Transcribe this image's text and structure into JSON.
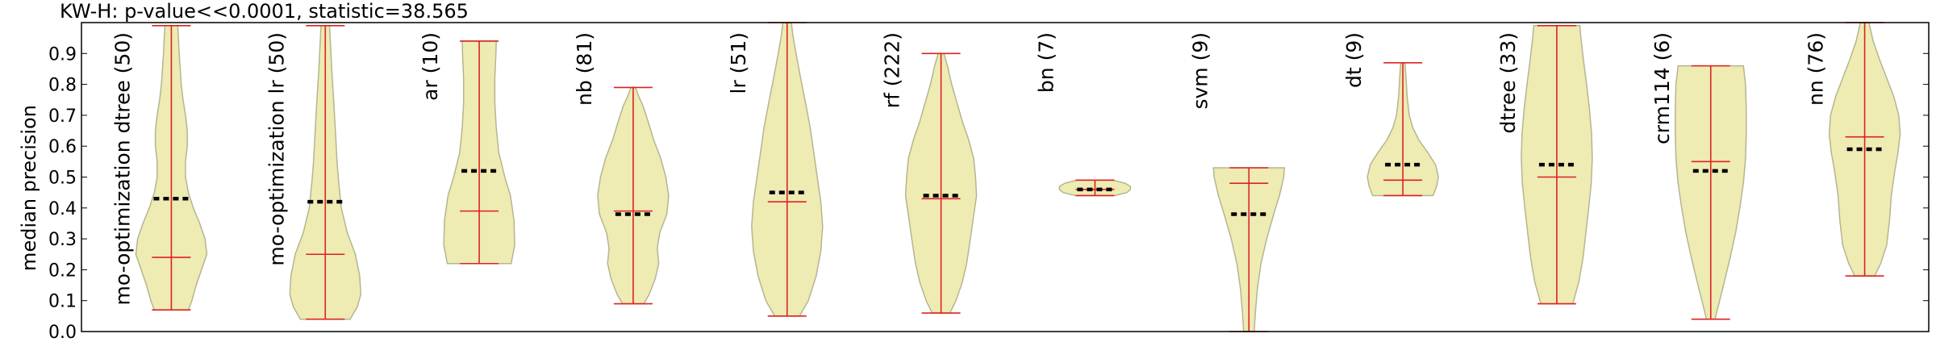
{
  "title": "KW-H: p-value<<0.0001, statistic=38.565",
  "chart_data": {
    "type": "violin",
    "title": "KW-H: p-value<<0.0001, statistic=38.565",
    "xlabel": "",
    "ylabel": "median precision",
    "ylim": [
      0.0,
      1.0
    ],
    "yticks": [
      "0.0",
      "0.1",
      "0.2",
      "0.3",
      "0.4",
      "0.5",
      "0.6",
      "0.7",
      "0.8",
      "0.9"
    ],
    "colors": {
      "fill": "#eeebb3",
      "edge": "#b5b592",
      "whisker": "#dd2222",
      "median_marker": "#000000"
    },
    "series": [
      {
        "label": "mo-optimization dtree (50)",
        "min": 0.07,
        "max": 0.99,
        "mean": 0.24,
        "median": 0.43,
        "shape": [
          [
            0.07,
            0.48
          ],
          [
            0.1,
            0.58
          ],
          [
            0.15,
            0.7
          ],
          [
            0.2,
            0.85
          ],
          [
            0.25,
            1.0
          ],
          [
            0.3,
            0.95
          ],
          [
            0.35,
            0.8
          ],
          [
            0.4,
            0.62
          ],
          [
            0.45,
            0.48
          ],
          [
            0.5,
            0.4
          ],
          [
            0.55,
            0.4
          ],
          [
            0.6,
            0.45
          ],
          [
            0.65,
            0.45
          ],
          [
            0.7,
            0.4
          ],
          [
            0.75,
            0.33
          ],
          [
            0.8,
            0.28
          ],
          [
            0.85,
            0.25
          ],
          [
            0.9,
            0.22
          ],
          [
            0.95,
            0.2
          ],
          [
            0.99,
            0.18
          ]
        ]
      },
      {
        "label": "mo-optimization lr (50)",
        "min": 0.04,
        "max": 0.99,
        "mean": 0.25,
        "median": 0.42,
        "shape": [
          [
            0.04,
            0.7
          ],
          [
            0.08,
            0.9
          ],
          [
            0.12,
            1.0
          ],
          [
            0.18,
            0.97
          ],
          [
            0.25,
            0.85
          ],
          [
            0.32,
            0.62
          ],
          [
            0.4,
            0.45
          ],
          [
            0.48,
            0.38
          ],
          [
            0.55,
            0.33
          ],
          [
            0.62,
            0.3
          ],
          [
            0.7,
            0.26
          ],
          [
            0.78,
            0.22
          ],
          [
            0.85,
            0.18
          ],
          [
            0.92,
            0.15
          ],
          [
            0.99,
            0.12
          ]
        ]
      },
      {
        "label": "ar (10)",
        "min": 0.22,
        "max": 0.94,
        "mean": 0.39,
        "median": 0.52,
        "shape": [
          [
            0.22,
            0.9
          ],
          [
            0.28,
            1.0
          ],
          [
            0.36,
            0.98
          ],
          [
            0.44,
            0.88
          ],
          [
            0.5,
            0.72
          ],
          [
            0.58,
            0.55
          ],
          [
            0.66,
            0.48
          ],
          [
            0.74,
            0.44
          ],
          [
            0.82,
            0.44
          ],
          [
            0.9,
            0.47
          ],
          [
            0.94,
            0.48
          ]
        ]
      },
      {
        "label": "nb (81)",
        "min": 0.09,
        "max": 0.79,
        "mean": 0.39,
        "median": 0.38,
        "shape": [
          [
            0.09,
            0.3
          ],
          [
            0.12,
            0.45
          ],
          [
            0.17,
            0.62
          ],
          [
            0.22,
            0.72
          ],
          [
            0.27,
            0.68
          ],
          [
            0.32,
            0.75
          ],
          [
            0.38,
            0.95
          ],
          [
            0.44,
            1.0
          ],
          [
            0.5,
            0.92
          ],
          [
            0.56,
            0.78
          ],
          [
            0.62,
            0.58
          ],
          [
            0.68,
            0.42
          ],
          [
            0.73,
            0.28
          ],
          [
            0.76,
            0.16
          ],
          [
            0.79,
            0.06
          ]
        ]
      },
      {
        "label": "lr (51)",
        "min": 0.05,
        "max": 1.0,
        "mean": 0.42,
        "median": 0.45,
        "shape": [
          [
            0.05,
            0.35
          ],
          [
            0.1,
            0.6
          ],
          [
            0.18,
            0.82
          ],
          [
            0.26,
            0.95
          ],
          [
            0.34,
            1.0
          ],
          [
            0.42,
            0.95
          ],
          [
            0.5,
            0.85
          ],
          [
            0.58,
            0.75
          ],
          [
            0.66,
            0.65
          ],
          [
            0.74,
            0.52
          ],
          [
            0.82,
            0.38
          ],
          [
            0.9,
            0.25
          ],
          [
            0.96,
            0.16
          ],
          [
            1.0,
            0.12
          ]
        ]
      },
      {
        "label": "rf (222)",
        "min": 0.06,
        "max": 0.9,
        "mean": 0.43,
        "median": 0.44,
        "shape": [
          [
            0.06,
            0.25
          ],
          [
            0.1,
            0.42
          ],
          [
            0.16,
            0.6
          ],
          [
            0.22,
            0.72
          ],
          [
            0.28,
            0.8
          ],
          [
            0.36,
            0.9
          ],
          [
            0.44,
            1.0
          ],
          [
            0.5,
            0.97
          ],
          [
            0.56,
            0.92
          ],
          [
            0.62,
            0.78
          ],
          [
            0.68,
            0.6
          ],
          [
            0.74,
            0.45
          ],
          [
            0.8,
            0.3
          ],
          [
            0.86,
            0.18
          ],
          [
            0.9,
            0.08
          ]
        ]
      },
      {
        "label": "bn (7)",
        "min": 0.44,
        "max": 0.49,
        "mean": 0.46,
        "median": 0.46,
        "shape": [
          [
            0.44,
            0.55
          ],
          [
            0.45,
            0.9
          ],
          [
            0.46,
            1.0
          ],
          [
            0.47,
            1.0
          ],
          [
            0.48,
            0.85
          ],
          [
            0.49,
            0.5
          ]
        ]
      },
      {
        "label": "svm (9)",
        "min": 0.0,
        "max": 0.53,
        "mean": 0.48,
        "median": 0.38,
        "shape": [
          [
            0.0,
            0.15
          ],
          [
            0.06,
            0.18
          ],
          [
            0.14,
            0.24
          ],
          [
            0.22,
            0.34
          ],
          [
            0.3,
            0.5
          ],
          [
            0.38,
            0.7
          ],
          [
            0.44,
            0.86
          ],
          [
            0.5,
            0.98
          ],
          [
            0.53,
            1.0
          ]
        ]
      },
      {
        "label": "dt (9)",
        "min": 0.44,
        "max": 0.87,
        "mean": 0.49,
        "median": 0.54,
        "shape": [
          [
            0.44,
            0.85
          ],
          [
            0.47,
            0.95
          ],
          [
            0.5,
            1.0
          ],
          [
            0.54,
            0.92
          ],
          [
            0.58,
            0.7
          ],
          [
            0.62,
            0.45
          ],
          [
            0.66,
            0.28
          ],
          [
            0.7,
            0.18
          ],
          [
            0.76,
            0.12
          ],
          [
            0.82,
            0.09
          ],
          [
            0.87,
            0.06
          ]
        ]
      },
      {
        "label": "dtree (33)",
        "min": 0.09,
        "max": 0.99,
        "mean": 0.5,
        "median": 0.54,
        "shape": [
          [
            0.09,
            0.45
          ],
          [
            0.16,
            0.62
          ],
          [
            0.24,
            0.74
          ],
          [
            0.32,
            0.82
          ],
          [
            0.4,
            0.9
          ],
          [
            0.48,
            0.97
          ],
          [
            0.56,
            1.0
          ],
          [
            0.64,
            0.98
          ],
          [
            0.72,
            0.92
          ],
          [
            0.8,
            0.84
          ],
          [
            0.88,
            0.75
          ],
          [
            0.95,
            0.68
          ],
          [
            0.99,
            0.65
          ]
        ]
      },
      {
        "label": "crm114 (6)",
        "min": 0.04,
        "max": 0.86,
        "mean": 0.55,
        "median": 0.52,
        "shape": [
          [
            0.04,
            0.12
          ],
          [
            0.1,
            0.25
          ],
          [
            0.16,
            0.38
          ],
          [
            0.24,
            0.55
          ],
          [
            0.32,
            0.7
          ],
          [
            0.4,
            0.82
          ],
          [
            0.48,
            0.92
          ],
          [
            0.56,
            0.98
          ],
          [
            0.64,
            1.0
          ],
          [
            0.72,
            1.0
          ],
          [
            0.8,
            0.98
          ],
          [
            0.86,
            0.92
          ]
        ]
      },
      {
        "label": "nn (76)",
        "min": 0.18,
        "max": 1.0,
        "mean": 0.63,
        "median": 0.59,
        "shape": [
          [
            0.18,
            0.28
          ],
          [
            0.22,
            0.45
          ],
          [
            0.28,
            0.62
          ],
          [
            0.36,
            0.7
          ],
          [
            0.44,
            0.75
          ],
          [
            0.52,
            0.85
          ],
          [
            0.58,
            0.94
          ],
          [
            0.64,
            1.0
          ],
          [
            0.7,
            0.96
          ],
          [
            0.76,
            0.82
          ],
          [
            0.82,
            0.62
          ],
          [
            0.88,
            0.42
          ],
          [
            0.94,
            0.24
          ],
          [
            1.0,
            0.12
          ]
        ]
      }
    ]
  }
}
